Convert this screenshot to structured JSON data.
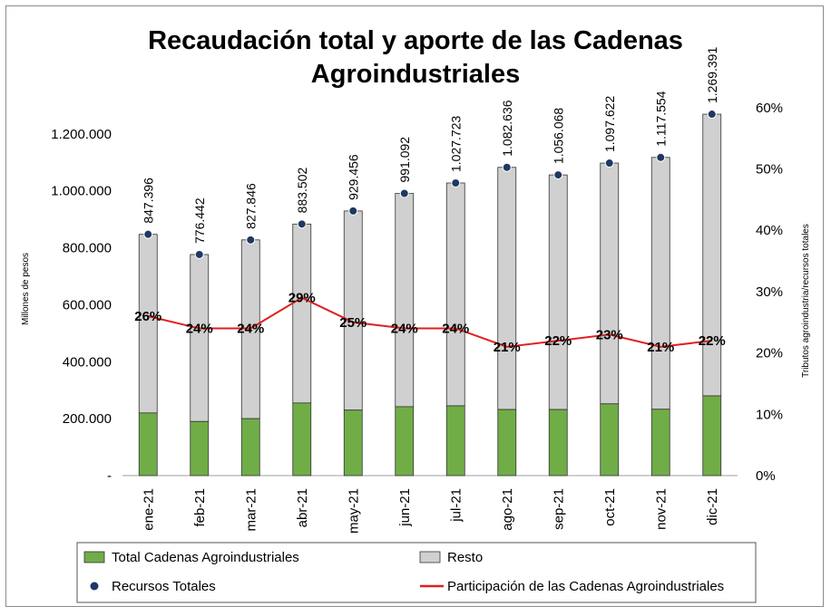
{
  "chart_data": {
    "type": "bar",
    "title_lines": [
      "Recaudación total y aporte de las Cadenas",
      "Agroindustriales"
    ],
    "ylabel": "Millones de pesos",
    "y2label": "Tributos agroindustria/recursos totales",
    "categories": [
      "ene-21",
      "feb-21",
      "mar-21",
      "abr-21",
      "may-21",
      "jun-21",
      "jul-21",
      "ago-21",
      "sep-21",
      "oct-21",
      "nov-21",
      "dic-21"
    ],
    "y_ticks": [
      {
        "value": 0,
        "label": "-"
      },
      {
        "value": 200000,
        "label": "200.000"
      },
      {
        "value": 400000,
        "label": "400.000"
      },
      {
        "value": 600000,
        "label": "600.000"
      },
      {
        "value": 800000,
        "label": "800.000"
      },
      {
        "value": 1000000,
        "label": "1.000.000"
      },
      {
        "value": 1200000,
        "label": "1.200.000"
      }
    ],
    "y2_ticks": [
      {
        "value": 0,
        "label": "0%"
      },
      {
        "value": 0.1,
        "label": "10%"
      },
      {
        "value": 0.2,
        "label": "20%"
      },
      {
        "value": 0.3,
        "label": "30%"
      },
      {
        "value": 0.4,
        "label": "40%"
      },
      {
        "value": 0.5,
        "label": "50%"
      },
      {
        "value": 0.6,
        "label": "60%"
      }
    ],
    "ylim": [
      0,
      1400000
    ],
    "y2lim": [
      0,
      0.65
    ],
    "totals": [
      847396,
      776442,
      827846,
      883502,
      929456,
      991092,
      1027723,
      1082636,
      1056068,
      1097622,
      1117554,
      1269391
    ],
    "total_labels": [
      "847.396",
      "776.442",
      "827.846",
      "883.502",
      "929.456",
      "991.092",
      "1.027.723",
      "1.082.636",
      "1.056.068",
      "1.097.622",
      "1.117.554",
      "1.269.391"
    ],
    "agro": [
      220000,
      190000,
      200000,
      255000,
      230000,
      242000,
      245000,
      232000,
      232000,
      252000,
      233000,
      280000
    ],
    "participation": [
      0.26,
      0.24,
      0.24,
      0.29,
      0.25,
      0.24,
      0.24,
      0.21,
      0.22,
      0.23,
      0.21,
      0.22
    ],
    "participation_labels": [
      "26%",
      "24%",
      "24%",
      "29%",
      "25%",
      "24%",
      "24%",
      "21%",
      "22%",
      "23%",
      "21%",
      "22%"
    ],
    "legend": [
      {
        "name": "Total Cadenas Agroindustriales",
        "kind": "bar",
        "color": "#70ad47"
      },
      {
        "name": "Resto",
        "kind": "bar",
        "color": "#d0d0d0"
      },
      {
        "name": "Recursos Totales",
        "kind": "marker",
        "color": "#1f3864"
      },
      {
        "name": "Participación de las Cadenas Agroindustriales",
        "kind": "line",
        "color": "#e02020"
      }
    ],
    "colors": {
      "agro": "#70ad47",
      "resto": "#d0d0d0",
      "marker": "#1f3864",
      "line": "#e02020"
    }
  }
}
